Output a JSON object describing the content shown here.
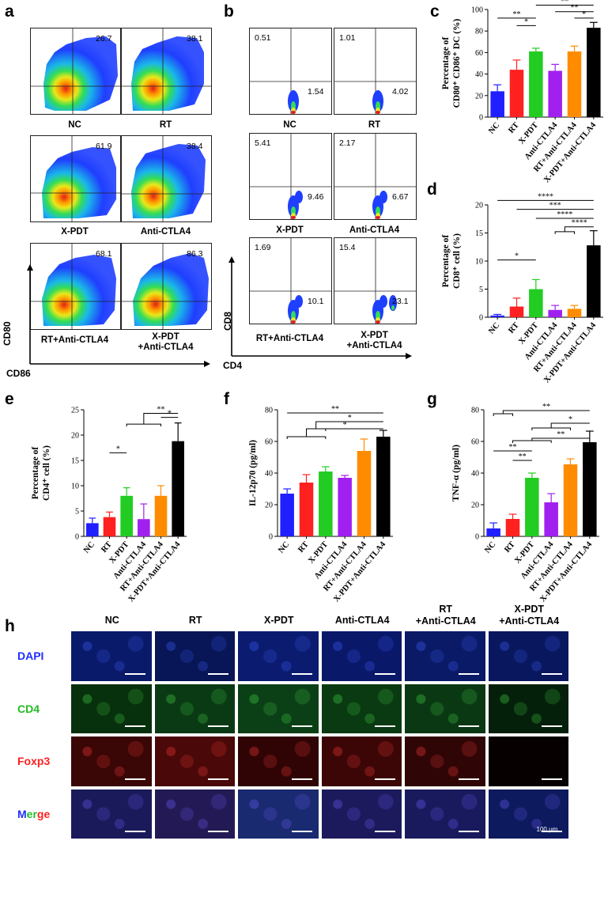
{
  "panels": {
    "a": "a",
    "b": "b",
    "c": "c",
    "d": "d",
    "e": "e",
    "f": "f",
    "g": "g",
    "h": "h"
  },
  "flow_a": {
    "x_axis": "CD86",
    "y_axis": "CD80",
    "plots": [
      {
        "label": "NC",
        "value": "26.7"
      },
      {
        "label": "RT",
        "value": "38.1"
      },
      {
        "label": "X-PDT",
        "value": "61.9"
      },
      {
        "label": "Anti-CTLA4",
        "value": "38.4"
      },
      {
        "label": "RT+Anti-CTLA4",
        "value": "68.1"
      },
      {
        "label": "X-PDT\n+Anti-CTLA4",
        "value": "86.3"
      }
    ]
  },
  "flow_b": {
    "x_axis": "CD4",
    "y_axis": "CD8",
    "plots": [
      {
        "label": "NC",
        "ul": "0.51",
        "lr": "1.54"
      },
      {
        "label": "RT",
        "ul": "1.01",
        "lr": "4.02"
      },
      {
        "label": "X-PDT",
        "ul": "5.41",
        "lr": "9.46"
      },
      {
        "label": "Anti-CTLA4",
        "ul": "2.17",
        "lr": "6.67"
      },
      {
        "label": "RT+Anti-CTLA4",
        "ul": "1.69",
        "lr": "10.1"
      },
      {
        "label": "X-PDT\n+Anti-CTLA4",
        "ul": "15.4",
        "lr": "23.1"
      }
    ]
  },
  "colors": [
    "#1f1fff",
    "#ff2020",
    "#22cc22",
    "#a020f0",
    "#ff8c00",
    "#000000"
  ],
  "chart_data": [
    {
      "panel": "c",
      "type": "bar",
      "ylabel": "Percentage of CD80⁺ CD86⁺ DC (%)",
      "ylabel_lines": [
        "Percentage of",
        "CD80⁺ CD86⁺ DC (%)"
      ],
      "categories": [
        "NC",
        "RT",
        "X-PDT",
        "Anti-CTLA4",
        "RT+Anti-CTLA4",
        "X-PDT+Anti-CTLA4"
      ],
      "values": [
        24,
        44,
        61,
        43,
        61,
        83
      ],
      "errors": [
        6,
        9,
        3,
        6,
        5,
        5
      ],
      "ylim": [
        0,
        100
      ],
      "yticks": [
        0,
        20,
        40,
        60,
        80,
        100
      ],
      "significance": [
        "**",
        "*",
        "**",
        "**",
        "*"
      ]
    },
    {
      "panel": "d",
      "type": "bar",
      "ylabel": "Percentage of CD8⁺ cell (%)",
      "ylabel_lines": [
        "Percentage of",
        "CD8⁺ cell (%)"
      ],
      "categories": [
        "NC",
        "RT",
        "X-PDT",
        "Anti-CTLA4",
        "RT+Anti-CTLA4",
        "X-PDT+Anti-CTLA4"
      ],
      "values": [
        0.3,
        1.9,
        5.0,
        1.3,
        1.5,
        12.8
      ],
      "errors": [
        0.2,
        1.5,
        1.7,
        0.8,
        0.6,
        2.6
      ],
      "ylim": [
        0,
        20
      ],
      "yticks": [
        0,
        5,
        10,
        15,
        20
      ],
      "significance": [
        "****",
        "***",
        "****",
        "****",
        "*"
      ]
    },
    {
      "panel": "e",
      "type": "bar",
      "ylabel": "Percentage of CD4⁺ cell (%)",
      "ylabel_lines": [
        "Percentage of",
        "CD4⁺ cell (%)"
      ],
      "categories": [
        "NC",
        "RT",
        "X-PDT",
        "Anti-CTLA4",
        "RT+Anti-CTLA4",
        "X-PDT+Anti-CTLA4"
      ],
      "values": [
        2.6,
        3.8,
        8.0,
        3.4,
        8.0,
        18.8
      ],
      "errors": [
        1.0,
        1.0,
        1.6,
        3.0,
        2.0,
        3.6
      ],
      "ylim": [
        0,
        25
      ],
      "yticks": [
        0,
        5,
        10,
        15,
        20,
        25
      ],
      "significance": [
        "*",
        "**",
        "*"
      ]
    },
    {
      "panel": "f",
      "type": "bar",
      "ylabel": "IL-12p70 (pg/ml)",
      "ylabel_lines": [
        "IL-12p70 (pg/ml)"
      ],
      "categories": [
        "NC",
        "RT",
        "X-PDT",
        "Anti-CTLA4",
        "RT+Anti-CTLA4",
        "X-PDT+Anti-CTLA4"
      ],
      "values": [
        27,
        34,
        41,
        37,
        54,
        63
      ],
      "errors": [
        3,
        5,
        3,
        1.5,
        7.5,
        4
      ],
      "ylim": [
        0,
        80
      ],
      "yticks": [
        0,
        20,
        40,
        60,
        80
      ],
      "significance": [
        "**",
        "*",
        "*"
      ]
    },
    {
      "panel": "g",
      "type": "bar",
      "ylabel": "TNF-α (pg/ml)",
      "ylabel_lines": [
        "TNF-α (pg/ml)"
      ],
      "categories": [
        "NC",
        "RT",
        "X-PDT",
        "Anti-CTLA4",
        "RT+Anti-CTLA4",
        "X-PDT+Anti-CTLA4"
      ],
      "values": [
        5,
        11,
        37,
        21.5,
        45.5,
        59.5
      ],
      "errors": [
        3.5,
        3,
        3,
        5.5,
        3.5,
        7
      ],
      "ylim": [
        0,
        80
      ],
      "yticks": [
        0,
        20,
        40,
        60,
        80
      ],
      "significance": [
        "**",
        "*",
        "**",
        "**",
        "**"
      ]
    }
  ],
  "if_panel": {
    "columns": [
      "NC",
      "RT",
      "X-PDT",
      "Anti-CTLA4",
      "RT\n+Anti-CTLA4",
      "X-PDT\n+Anti-CTLA4"
    ],
    "rows": [
      {
        "label": "DAPI",
        "color": "#1f2fff"
      },
      {
        "label": "CD4",
        "color": "#22bb22"
      },
      {
        "label": "Foxp3",
        "color": "#ff2020"
      },
      {
        "label": "Merge",
        "color": "#1f2fff"
      }
    ],
    "merge_letters": [
      "M",
      "e",
      "r",
      "g",
      "e"
    ],
    "scale_bar": "100 μm"
  }
}
